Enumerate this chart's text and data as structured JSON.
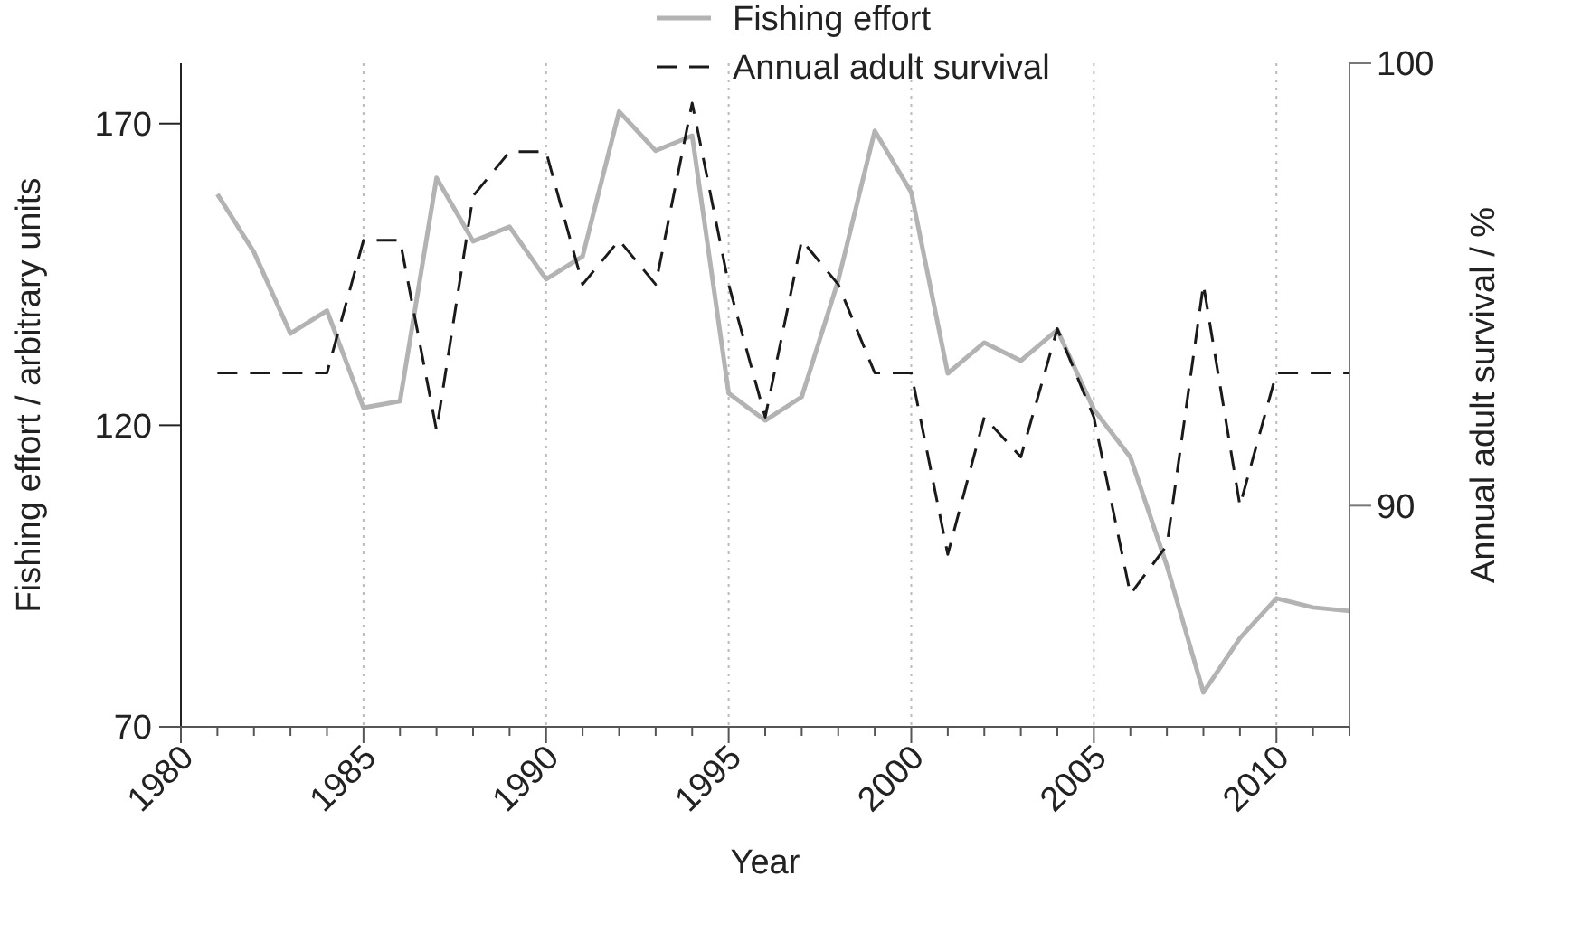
{
  "chart_data": {
    "type": "line",
    "xlabel": "Year",
    "ylabel": "Fishing effort / arbitrary units",
    "y2label": "Annual adult survival / %",
    "x": [
      1981,
      1982,
      1983,
      1984,
      1985,
      1986,
      1987,
      1988,
      1989,
      1990,
      1991,
      1992,
      1993,
      1994,
      1995,
      1996,
      1997,
      1998,
      1999,
      2000,
      2001,
      2002,
      2003,
      2004,
      2005,
      2006,
      2007,
      2008,
      2009,
      2010,
      2011,
      2012
    ],
    "series": [
      {
        "name": "Fishing effort",
        "color": "#b3b3b3",
        "line_style": "solid",
        "values": [
          158.3,
          148.7,
          135.2,
          139,
          122.9,
          124,
          161,
          150.5,
          152.9,
          144.2,
          148,
          172,
          165.5,
          168,
          125.3,
          120.8,
          124.7,
          144,
          168.8,
          158.6,
          128.6,
          133.7,
          130.7,
          135.8,
          122.6,
          114.7,
          96.7,
          75.7,
          84.7,
          91.3,
          89.8,
          89.2
        ]
      },
      {
        "name": "Annual adult survival",
        "color": "#1a1a1a",
        "line_style": "dashed",
        "axis": "y2",
        "values": [
          93,
          93,
          93,
          93,
          96,
          96,
          91.7,
          97,
          98,
          98,
          95,
          96,
          95,
          99.1,
          95,
          92,
          96,
          95,
          93,
          93,
          88.9,
          92,
          91.1,
          94,
          92,
          88,
          89.1,
          95,
          90,
          93,
          93,
          93
        ]
      }
    ],
    "xlim": [
      1980,
      2012
    ],
    "xticks": [
      1980,
      {
        "value": 1981,
        "label": null
      },
      {
        "value": 1982,
        "label": null
      },
      {
        "value": 1983,
        "label": null
      },
      {
        "value": 1984,
        "label": null
      },
      1985,
      {
        "value": 1986,
        "label": null
      },
      {
        "value": 1987,
        "label": null
      },
      {
        "value": 1988,
        "label": null
      },
      {
        "value": 1989,
        "label": null
      },
      1990,
      {
        "value": 1991,
        "label": null
      },
      {
        "value": 1992,
        "label": null
      },
      {
        "value": 1993,
        "label": null
      },
      {
        "value": 1994,
        "label": null
      },
      1995,
      {
        "value": 1996,
        "label": null
      },
      {
        "value": 1997,
        "label": null
      },
      {
        "value": 1998,
        "label": null
      },
      {
        "value": 1999,
        "label": null
      },
      2000,
      {
        "value": 2001,
        "label": null
      },
      {
        "value": 2002,
        "label": null
      },
      {
        "value": 2003,
        "label": null
      },
      {
        "value": 2004,
        "label": null
      },
      2005,
      {
        "value": 2006,
        "label": null
      },
      {
        "value": 2007,
        "label": null
      },
      {
        "value": 2008,
        "label": null
      },
      {
        "value": 2009,
        "label": null
      },
      2010,
      {
        "value": 2011,
        "label": null
      },
      {
        "value": 2012,
        "label": null
      }
    ],
    "ylim": [
      70,
      180
    ],
    "yticks": [
      70,
      120,
      170
    ],
    "y2lim": [
      85,
      100
    ],
    "y2ticks": [
      90,
      100
    ],
    "grid": "x",
    "legend": "top",
    "marker": "none"
  }
}
